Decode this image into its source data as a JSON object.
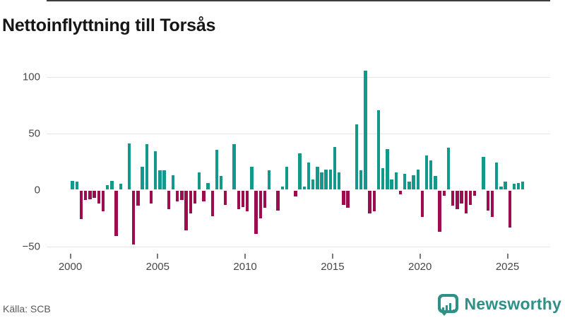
{
  "title": "Nettoinflyttning till Torsås",
  "source": "Källa: SCB",
  "brand": {
    "name": "Newsworthy"
  },
  "colors": {
    "positive": "#12998c",
    "negative": "#9c0d4f",
    "brand_teal": "#2e9087",
    "zero_line": "#3d3d3d",
    "gridline": "#e4e4e4"
  },
  "chart_data": {
    "type": "bar",
    "title": "Nettoinflyttning till Torsås",
    "xlabel": "",
    "ylabel": "",
    "frequency": "quarterly",
    "start_year": 2000,
    "start_quarter": 1,
    "end_year": 2025,
    "end_quarter": 4,
    "grid": true,
    "ylim": [
      -60,
      112
    ],
    "y_ticks": [
      100,
      50,
      0,
      -50
    ],
    "y_tick_labels": [
      "100",
      "50",
      "0",
      "−50"
    ],
    "x_tick_labels": [
      "2000",
      "2005",
      "2010",
      "2015",
      "2020",
      "2025"
    ],
    "series_name": "Nettoinflyttning per kvartal",
    "values": [
      8,
      7,
      -25,
      -8,
      -7,
      -6,
      -11,
      -18,
      4,
      8,
      -40,
      5,
      0,
      41,
      -47,
      -13,
      20,
      40,
      -11,
      34,
      17,
      17,
      -16,
      13,
      -9,
      -8,
      -35,
      -20,
      -11,
      15,
      -9,
      6,
      -22,
      35,
      12,
      -12,
      0,
      40,
      -16,
      -14,
      -18,
      20,
      -38,
      -24,
      -15,
      17,
      0,
      -17,
      3,
      20,
      0,
      -5,
      32,
      3,
      24,
      9,
      20,
      15,
      18,
      18,
      38,
      15,
      -12,
      -15,
      0,
      58,
      17,
      105,
      -20,
      -18,
      70,
      19,
      36,
      9,
      15,
      -3,
      14,
      7,
      13,
      18,
      -23,
      30,
      26,
      12,
      -36,
      -4,
      37,
      -13,
      -16,
      -11,
      -20,
      -12,
      -4,
      0,
      29,
      -17,
      -23,
      24,
      3,
      7,
      -32,
      5,
      6,
      7
    ]
  }
}
